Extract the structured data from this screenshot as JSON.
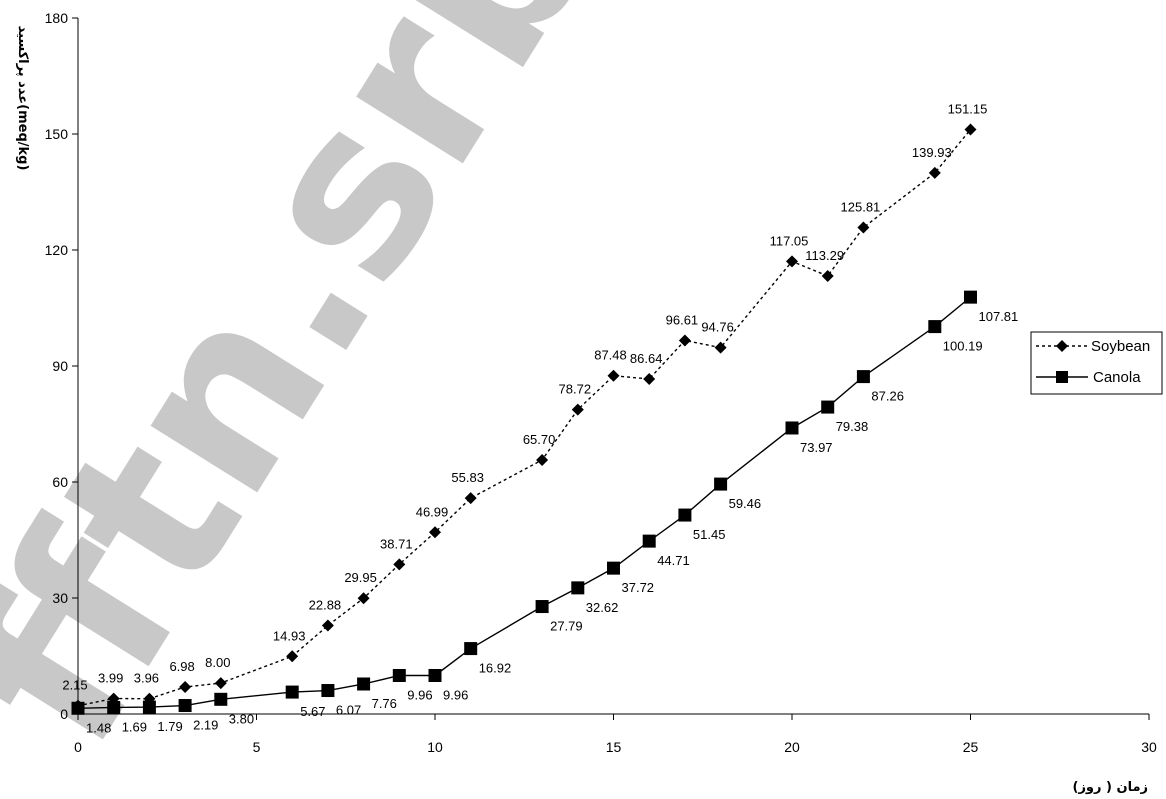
{
  "chart_data": {
    "type": "line",
    "title": "",
    "xlabel": "زمان ( روز)",
    "ylabel": "عدد پراکسید(meq/kg)",
    "xlim": [
      0,
      30
    ],
    "ylim": [
      0,
      180
    ],
    "x_ticks": [
      "0",
      "5",
      "10",
      "15",
      "20",
      "25",
      "30"
    ],
    "y_ticks": [
      "0",
      "30",
      "60",
      "90",
      "120",
      "150",
      "180"
    ],
    "grid": false,
    "legend_position": "right",
    "series": [
      {
        "name": "Soybean",
        "marker": "diamond",
        "line_style": "dotted",
        "color": "#000000",
        "x": [
          0,
          1,
          2,
          3,
          4,
          6,
          7,
          8,
          9,
          10,
          11,
          13,
          14,
          15,
          16,
          17,
          18,
          20,
          21,
          22,
          24,
          25
        ],
        "y": [
          2.15,
          3.99,
          3.96,
          6.98,
          8.0,
          14.93,
          22.88,
          29.95,
          38.71,
          46.99,
          55.83,
          65.7,
          78.72,
          87.48,
          86.64,
          96.61,
          94.76,
          117.05,
          113.29,
          125.81,
          139.93,
          151.15
        ],
        "labels": [
          "2.15",
          "3.99",
          "3.96",
          "6.98",
          "8.00",
          "14.93",
          "22.88",
          "29.95",
          "38.71",
          "46.99",
          "55.83",
          "65.70",
          "78.72",
          "87.48",
          "86.64",
          "96.61",
          "94.76",
          "117.05",
          "113.29",
          "125.81",
          "139.93",
          "151.15"
        ]
      },
      {
        "name": "Canola",
        "marker": "square",
        "line_style": "solid",
        "color": "#000000",
        "x": [
          0,
          1,
          2,
          3,
          4,
          6,
          7,
          8,
          9,
          10,
          11,
          13,
          14,
          15,
          16,
          17,
          18,
          20,
          21,
          22,
          24,
          25
        ],
        "y": [
          1.48,
          1.69,
          1.79,
          2.19,
          3.8,
          5.67,
          6.07,
          7.76,
          9.96,
          9.96,
          16.92,
          27.79,
          32.62,
          37.72,
          44.71,
          51.45,
          59.46,
          73.97,
          79.38,
          87.26,
          100.19,
          107.81
        ],
        "labels": [
          "1.48",
          "1.69",
          "1.79",
          "2.19",
          "3.80",
          "5.67",
          "6.07",
          "7.76",
          "9.96",
          "9.96",
          "16.92",
          "27.79",
          "32.62",
          "37.72",
          "44.71",
          "51.45",
          "59.46",
          "73.97",
          "79.38",
          "87.26",
          "100.19",
          "107.81"
        ]
      }
    ]
  },
  "watermark": {
    "text": "fftn.srbla",
    "color": "#c8c8c8"
  }
}
